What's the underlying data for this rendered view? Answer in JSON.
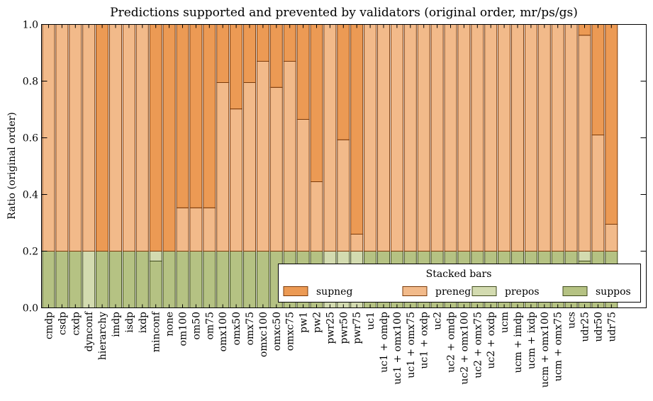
{
  "chart_data": {
    "type": "bar",
    "stacked": true,
    "title": "Predictions supported and prevented by validators (original order, mr/ps/gs)",
    "xlabel": "",
    "ylabel": "Ratio (original order)",
    "ylim": [
      0,
      1.0
    ],
    "yticks": [
      "0.0",
      "0.2",
      "0.4",
      "0.6",
      "0.8",
      "1.0"
    ],
    "grid": false,
    "legend": {
      "title": "Stacked bars",
      "placement": "lower-right",
      "entries": [
        "supneg",
        "preneg",
        "prepos",
        "suppos"
      ]
    },
    "categories": [
      "cmdp",
      "csdp",
      "cxdp",
      "dynconf",
      "hierarchy",
      "imdp",
      "isdp",
      "ixdp",
      "minconf",
      "none",
      "om100",
      "om50",
      "om75",
      "omx100",
      "omx50",
      "omx75",
      "omxc100",
      "omxc50",
      "omxc75",
      "pw1",
      "pw2",
      "pwr25",
      "pwr50",
      "pwr75",
      "uc1",
      "uc1 + omdp",
      "uc1 + omx100",
      "uc1 + omx75",
      "uc1 + oxdp",
      "uc2",
      "uc2 + omdp",
      "uc2 + omx100",
      "uc2 + omx75",
      "uc2 + oxdp",
      "ucm",
      "ucm + imdp",
      "ucm + ixdp",
      "ucm + omx100",
      "ucm + omx75",
      "ucs",
      "udr25",
      "udr50",
      "udr75"
    ],
    "series": [
      {
        "name": "suppos",
        "color": "#b5c283",
        "edge": "#3f4a1c",
        "values": [
          0.2,
          0.2,
          0.2,
          0,
          0.2,
          0.2,
          0.2,
          0.2,
          0.165,
          0.2,
          0.2,
          0.2,
          0.2,
          0.2,
          0.2,
          0.2,
          0.2,
          0.2,
          0.2,
          0.2,
          0.2,
          0,
          0,
          0,
          0.2,
          0.2,
          0.2,
          0.2,
          0.2,
          0.2,
          0.2,
          0.2,
          0.2,
          0.2,
          0.2,
          0.2,
          0.2,
          0.2,
          0.2,
          0.2,
          0.165,
          0.2,
          0.2
        ]
      },
      {
        "name": "prepos",
        "color": "#d3dbb0",
        "edge": "#3f4a1c",
        "values": [
          0,
          0,
          0,
          0.2,
          0,
          0,
          0,
          0,
          0.035,
          0,
          0,
          0,
          0,
          0,
          0,
          0,
          0,
          0,
          0,
          0,
          0,
          0.2,
          0.2,
          0.2,
          0,
          0,
          0,
          0,
          0,
          0,
          0,
          0,
          0,
          0,
          0,
          0,
          0,
          0,
          0,
          0,
          0.035,
          0,
          0
        ]
      },
      {
        "name": "preneg",
        "color": "#f2ba8a",
        "edge": "#7a3a0a",
        "values": [
          0.8,
          0.8,
          0.8,
          0.8,
          0,
          0.8,
          0.8,
          0.8,
          0,
          0,
          0.153,
          0.153,
          0.153,
          0.595,
          0.502,
          0.595,
          0.67,
          0.578,
          0.67,
          0.465,
          0.245,
          0.8,
          0.393,
          0.06,
          0.8,
          0.8,
          0.8,
          0.8,
          0.8,
          0.8,
          0.8,
          0.8,
          0.8,
          0.8,
          0.8,
          0.8,
          0.8,
          0.8,
          0.8,
          0.8,
          0.762,
          0.41,
          0.095
        ]
      },
      {
        "name": "supneg",
        "color": "#ec9a54",
        "edge": "#7a3a0a",
        "values": [
          0,
          0,
          0,
          0,
          0.8,
          0,
          0,
          0,
          0.8,
          0.8,
          0.647,
          0.647,
          0.647,
          0.205,
          0.298,
          0.205,
          0.13,
          0.222,
          0.13,
          0.335,
          0.555,
          0,
          0.407,
          0.74,
          0,
          0,
          0,
          0,
          0,
          0,
          0,
          0,
          0,
          0,
          0,
          0,
          0,
          0,
          0,
          0,
          0.038,
          0.39,
          0.705
        ]
      }
    ]
  }
}
